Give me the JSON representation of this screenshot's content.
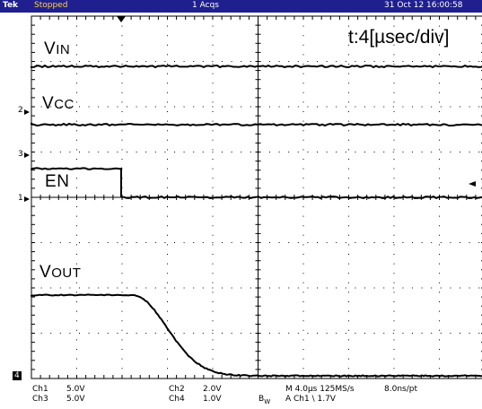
{
  "status_bar": {
    "brand": "Tek",
    "state": "Stopped",
    "acquisitions": "1 Acqs",
    "datetime": "31 Oct 12 16:00:58"
  },
  "timebase_label": "t:4[µsec/div]",
  "channel_labels": {
    "vin": {
      "first": "V",
      "rest": "IN"
    },
    "vcc": {
      "first": "V",
      "rest": "CC"
    },
    "en": {
      "first": "E",
      "rest": "N"
    },
    "vout": {
      "first": "V",
      "rest": "OUT"
    }
  },
  "channel_markers": {
    "ch2": "2",
    "ch3": "3",
    "ch1": "1",
    "ch4": "4"
  },
  "bottom_readout": {
    "ch1_name": "Ch1",
    "ch1_scale": "5.0V",
    "ch3_name": "Ch3",
    "ch3_scale": "5.0V",
    "ch2_name": "Ch2",
    "ch2_scale": "2.0V",
    "ch4_name": "Ch4",
    "ch4_scale": "1.0V",
    "bw": "B",
    "bw_sub": "W",
    "horizontal": "M 4.0µs 125MS/s",
    "resolution": "8.0ns/pt",
    "trigger": "A  Ch1  \\  1.7V"
  },
  "colors": {
    "status_bar": "#1f1f8f",
    "trace": "#000000",
    "grid": "#000000"
  }
}
